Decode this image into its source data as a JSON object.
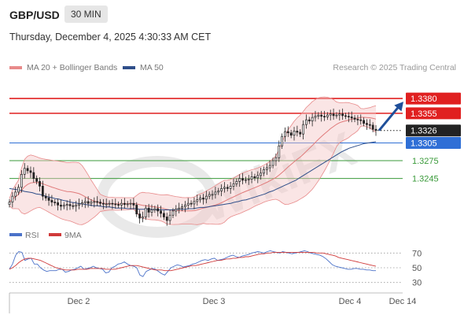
{
  "header": {
    "symbol": "GBP/USD",
    "timeframe": "30 MIN",
    "datetime": "Thursday, December 4, 2025 4:30:33 AM CET",
    "credit": "Research © 2025 Trading Central"
  },
  "legend_top": [
    {
      "label": "MA 20 + Bollinger Bands",
      "color": "#e88a8a"
    },
    {
      "label": "MA 50",
      "color": "#2f4f8a"
    }
  ],
  "legend_rsi": [
    {
      "label": "RSI",
      "color": "#4b72c9"
    },
    {
      "label": "9MA",
      "color": "#d03a3a"
    }
  ],
  "watermark": "WikiFX",
  "chart_data": [
    {
      "type": "line",
      "title": "GBP/USD",
      "xlabel": "",
      "ylabel": "",
      "x_ticks": [
        "Dec 2",
        "Dec 3",
        "Dec 4",
        "Dec 14"
      ],
      "ylim": [
        1.317,
        1.342
      ],
      "grid": false,
      "current_price": {
        "value": 1.3326,
        "label": "1.3326"
      },
      "levels": [
        {
          "value": 1.338,
          "label": "1.3380",
          "role": "resistance",
          "color": "#e02020",
          "badge": true
        },
        {
          "value": 1.3355,
          "label": "1.3355",
          "role": "resistance",
          "color": "#e02020",
          "badge": true
        },
        {
          "value": 1.3305,
          "label": "1.3305",
          "role": "pivot",
          "color": "#2f6fd6",
          "badge": true
        },
        {
          "value": 1.3275,
          "label": "1.3275",
          "role": "support",
          "color": "#3a9a3a",
          "badge": false
        },
        {
          "value": 1.3245,
          "label": "1.3245",
          "role": "support",
          "color": "#3a9a3a",
          "badge": false
        }
      ],
      "close_series": [
        1.3205,
        1.3215,
        1.3222,
        1.323,
        1.3252,
        1.3262,
        1.3258,
        1.3255,
        1.3245,
        1.324,
        1.3232,
        1.3215,
        1.3212,
        1.3208,
        1.3205,
        1.3204,
        1.32,
        1.3198,
        1.32,
        1.3201,
        1.3199,
        1.3198,
        1.32,
        1.3202,
        1.3204,
        1.3206,
        1.3203,
        1.3205,
        1.3206,
        1.3205,
        1.3203,
        1.3202,
        1.3202,
        1.3203,
        1.3202,
        1.3201,
        1.32,
        1.3203,
        1.3201,
        1.3202,
        1.3203,
        1.32,
        1.3185,
        1.3178,
        1.318,
        1.3195,
        1.3188,
        1.3192,
        1.3194,
        1.319,
        1.3186,
        1.318,
        1.3174,
        1.3183,
        1.319,
        1.3193,
        1.3195,
        1.3197,
        1.32,
        1.3203,
        1.3202,
        1.3206,
        1.3209,
        1.3212,
        1.321,
        1.3215,
        1.3218,
        1.3218,
        1.3222,
        1.3224,
        1.3228,
        1.323,
        1.3228,
        1.3232,
        1.3236,
        1.324,
        1.3245,
        1.3242,
        1.3243,
        1.3244,
        1.3248,
        1.3246,
        1.325,
        1.3254,
        1.326,
        1.3263,
        1.3267,
        1.3275,
        1.328,
        1.33,
        1.3316,
        1.3324,
        1.3322,
        1.3318,
        1.3325,
        1.3323,
        1.332,
        1.3336,
        1.3344,
        1.3342,
        1.3348,
        1.335,
        1.3352,
        1.335,
        1.3349,
        1.3352,
        1.3354,
        1.3351,
        1.3352,
        1.3354,
        1.3351,
        1.335,
        1.3349,
        1.3347,
        1.3345,
        1.3344,
        1.3343,
        1.3338,
        1.3336,
        1.3335,
        1.3328,
        1.3326
      ],
      "ma50_series": [
        1.3228,
        1.3227,
        1.3226,
        1.3225,
        1.3223,
        1.3222,
        1.3221,
        1.3219,
        1.3218,
        1.3216,
        1.3214,
        1.3213,
        1.3211,
        1.321,
        1.3208,
        1.3207,
        1.3205,
        1.3204,
        1.3203,
        1.3202,
        1.3201,
        1.32,
        1.3199,
        1.3199,
        1.3198,
        1.3197,
        1.3197,
        1.3196,
        1.3195,
        1.3195,
        1.3195,
        1.3194,
        1.3194,
        1.3194,
        1.3193,
        1.3193,
        1.3193,
        1.3193,
        1.3192,
        1.3192,
        1.3192,
        1.3192,
        1.3192,
        1.3192,
        1.3193,
        1.3193,
        1.3193,
        1.3194,
        1.3194,
        1.3195,
        1.3196,
        1.3196,
        1.3197,
        1.3198,
        1.3199,
        1.32,
        1.3201,
        1.3202,
        1.3203,
        1.3205,
        1.3206,
        1.3208,
        1.3209,
        1.3211,
        1.3213,
        1.3215,
        1.3217,
        1.3219,
        1.3222,
        1.3224,
        1.3227,
        1.323,
        1.3233,
        1.3236,
        1.3239,
        1.3242,
        1.3246,
        1.325,
        1.3254,
        1.3258,
        1.3262,
        1.3266,
        1.327,
        1.3274,
        1.3278,
        1.3282,
        1.3286,
        1.329,
        1.3293,
        1.3296,
        1.3298,
        1.33,
        1.3302,
        1.3304,
        1.3305,
        1.3306,
        1.3307
      ],
      "forecast_arrow": {
        "from": 1.3326,
        "to": 1.338
      }
    },
    {
      "type": "line",
      "title": "RSI",
      "ylim": [
        20,
        80
      ],
      "reference_lines": [
        70,
        50,
        30
      ],
      "y_labels": [
        "70",
        "50",
        "30"
      ],
      "series": [
        {
          "name": "RSI",
          "values": [
            48,
            55,
            67,
            72,
            71,
            60,
            62,
            63,
            55,
            55,
            50,
            47,
            45,
            46,
            46,
            46,
            48,
            48,
            44,
            45,
            47,
            48,
            50,
            52,
            48,
            49,
            50,
            52,
            50,
            49,
            48,
            43,
            44,
            50,
            52,
            55,
            56,
            58,
            55,
            53,
            52,
            50,
            40,
            38,
            45,
            47,
            49,
            48,
            45,
            42,
            40,
            45,
            50,
            52,
            54,
            53,
            51,
            52,
            53,
            55,
            56,
            58,
            60,
            61,
            60,
            62,
            63,
            60,
            61,
            62,
            64,
            66,
            67,
            65,
            64,
            66,
            67,
            68,
            70,
            71,
            72,
            71,
            70,
            72,
            73,
            72,
            71,
            70,
            72,
            71,
            70,
            69,
            70,
            71,
            72,
            73,
            72,
            70,
            69,
            68,
            67,
            65,
            62,
            58,
            54,
            52,
            51,
            50,
            49,
            48,
            48,
            49,
            49,
            48,
            48,
            47,
            47,
            46,
            46
          ]
        },
        {
          "name": "9MA",
          "values": [
            48,
            50,
            53,
            57,
            60,
            62,
            63,
            63,
            62,
            61,
            60,
            58,
            56,
            54,
            52,
            50,
            49,
            48,
            47,
            47,
            47,
            47,
            48,
            48,
            48,
            48,
            49,
            49,
            49,
            49,
            49,
            48,
            48,
            48,
            48,
            49,
            50,
            51,
            52,
            53,
            53,
            53,
            52,
            51,
            50,
            49,
            48,
            47,
            47,
            47,
            46,
            46,
            46,
            47,
            48,
            49,
            50,
            51,
            52,
            53,
            53,
            54,
            55,
            56,
            57,
            58,
            59,
            60,
            60,
            61,
            62,
            62,
            63,
            63,
            64,
            64,
            65,
            65,
            66,
            67,
            68,
            69,
            69,
            70,
            70,
            71,
            71,
            71,
            71,
            71,
            71,
            71,
            71,
            71,
            71,
            71,
            71,
            71,
            71,
            70,
            70,
            70,
            69,
            68,
            67,
            66,
            64,
            63,
            62,
            61,
            60,
            59,
            58,
            57,
            56,
            55,
            54,
            53,
            52
          ]
        }
      ]
    }
  ]
}
